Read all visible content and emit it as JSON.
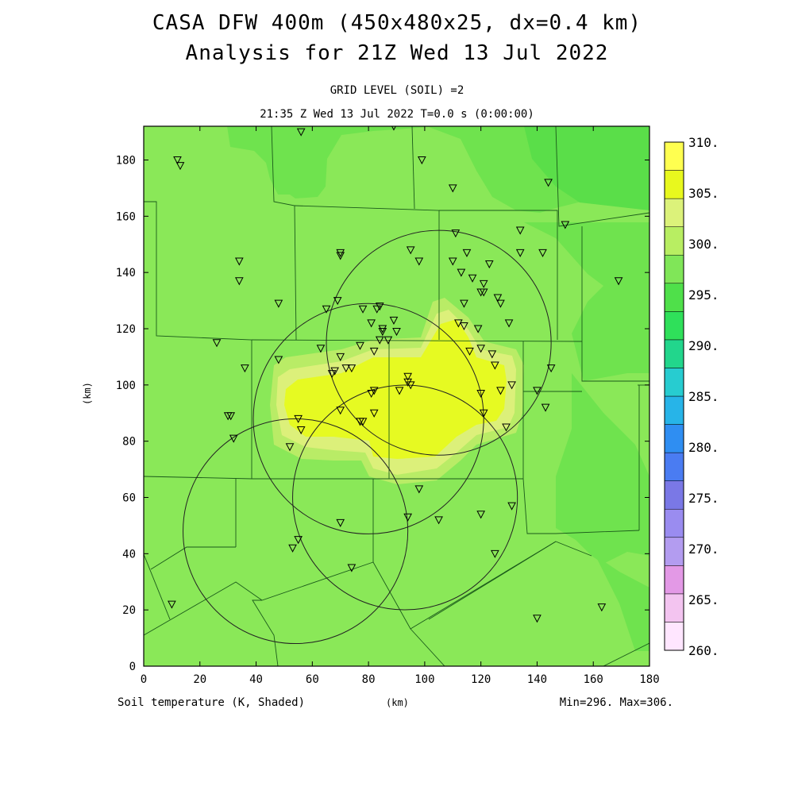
{
  "title_line1": "CASA DFW 400m (450x480x25, dx=0.4 km)",
  "title_line2": "Analysis for 21Z Wed 13 Jul 2022",
  "subtitle_line1": "GRID LEVEL (SOIL) =2",
  "subtitle_line2": "21:35 Z Wed 13 Jul 2022   T=0.0 s (0:00:00)",
  "footer": {
    "variable": "Soil temperature (K, Shaded)",
    "x_unit": "(km)",
    "minmax": "Min=296. Max=306."
  },
  "axes": {
    "x_ticks": [
      "0",
      "20",
      "40",
      "60",
      "80",
      "100",
      "120",
      "140",
      "160",
      "180"
    ],
    "y_ticks": [
      "0",
      "20",
      "40",
      "60",
      "80",
      "100",
      "120",
      "140",
      "160",
      "180"
    ],
    "y_label": "(km)",
    "x_range": [
      0,
      180
    ],
    "y_range": [
      0,
      192
    ]
  },
  "colorbar": {
    "labels": [
      "260.",
      "265.",
      "270.",
      "275.",
      "280.",
      "285.",
      "290.",
      "295.",
      "300.",
      "305.",
      "310."
    ],
    "colors": [
      "#ffe6ff",
      "#f3c4f0",
      "#e399e6",
      "#b39cf0",
      "#9a8cf0",
      "#7a78e6",
      "#4a7cf2",
      "#2f8ef2",
      "#27b4e8",
      "#27ccd0",
      "#22d68c",
      "#2fe05a",
      "#4fe04a",
      "#80e658",
      "#b8ee62",
      "#dcf27a",
      "#e8f81e",
      "#ffff50"
    ]
  },
  "map": {
    "palette": {
      "base": "#8ae858",
      "darker": "#6fe34e",
      "darkest": "#5ade49",
      "light": "#b9ec66",
      "pale": "#dcf07a",
      "hot": "#e6fa22"
    },
    "radar_circles": [
      {
        "cx": 105,
        "cy": 115,
        "r": 40
      },
      {
        "cx": 80,
        "cy": 88,
        "r": 41
      },
      {
        "cx": 93,
        "cy": 60,
        "r": 40
      },
      {
        "cx": 54,
        "cy": 48,
        "r": 40
      }
    ],
    "stations": [
      [
        12,
        180
      ],
      [
        13,
        178
      ],
      [
        56,
        190
      ],
      [
        89,
        192
      ],
      [
        99,
        180
      ],
      [
        110,
        170
      ],
      [
        144,
        172
      ],
      [
        150,
        157
      ],
      [
        34,
        144
      ],
      [
        34,
        137
      ],
      [
        70,
        147
      ],
      [
        70,
        146
      ],
      [
        95,
        148
      ],
      [
        98,
        144
      ],
      [
        110,
        144
      ],
      [
        111,
        154
      ],
      [
        115,
        147
      ],
      [
        123,
        143
      ],
      [
        134,
        155
      ],
      [
        134,
        147
      ],
      [
        142,
        147
      ],
      [
        169,
        137
      ],
      [
        113,
        140
      ],
      [
        117,
        138
      ],
      [
        121,
        136
      ],
      [
        120,
        133
      ],
      [
        121,
        133
      ],
      [
        126,
        131
      ],
      [
        127,
        129
      ],
      [
        48,
        129
      ],
      [
        65,
        127
      ],
      [
        69,
        130
      ],
      [
        78,
        127
      ],
      [
        83,
        127
      ],
      [
        84,
        128
      ],
      [
        89,
        123
      ],
      [
        90,
        119
      ],
      [
        81,
        122
      ],
      [
        85,
        119
      ],
      [
        85,
        120
      ],
      [
        84,
        116
      ],
      [
        112,
        122
      ],
      [
        114,
        121
      ],
      [
        119,
        120
      ],
      [
        114,
        129
      ],
      [
        130,
        122
      ],
      [
        26,
        115
      ],
      [
        36,
        106
      ],
      [
        48,
        109
      ],
      [
        63,
        113
      ],
      [
        67,
        104
      ],
      [
        68,
        105
      ],
      [
        70,
        110
      ],
      [
        72,
        106
      ],
      [
        74,
        106
      ],
      [
        77,
        114
      ],
      [
        82,
        112
      ],
      [
        87,
        116
      ],
      [
        94,
        103
      ],
      [
        94,
        101
      ],
      [
        95,
        100
      ],
      [
        120,
        113
      ],
      [
        116,
        112
      ],
      [
        124,
        111
      ],
      [
        125,
        107
      ],
      [
        145,
        106
      ],
      [
        30,
        89
      ],
      [
        31,
        89
      ],
      [
        32,
        81
      ],
      [
        55,
        88
      ],
      [
        56,
        84
      ],
      [
        52,
        78
      ],
      [
        70,
        91
      ],
      [
        77,
        87
      ],
      [
        78,
        87
      ],
      [
        81,
        97
      ],
      [
        82,
        98
      ],
      [
        82,
        90
      ],
      [
        91,
        98
      ],
      [
        120,
        97
      ],
      [
        121,
        90
      ],
      [
        127,
        98
      ],
      [
        131,
        100
      ],
      [
        140,
        98
      ],
      [
        143,
        92
      ],
      [
        129,
        85
      ],
      [
        98,
        63
      ],
      [
        94,
        53
      ],
      [
        105,
        52
      ],
      [
        70,
        51
      ],
      [
        120,
        54
      ],
      [
        131,
        57
      ],
      [
        125,
        40
      ],
      [
        53,
        42
      ],
      [
        55,
        45
      ],
      [
        74,
        35
      ],
      [
        10,
        22
      ],
      [
        140,
        17
      ],
      [
        163,
        21
      ]
    ]
  }
}
